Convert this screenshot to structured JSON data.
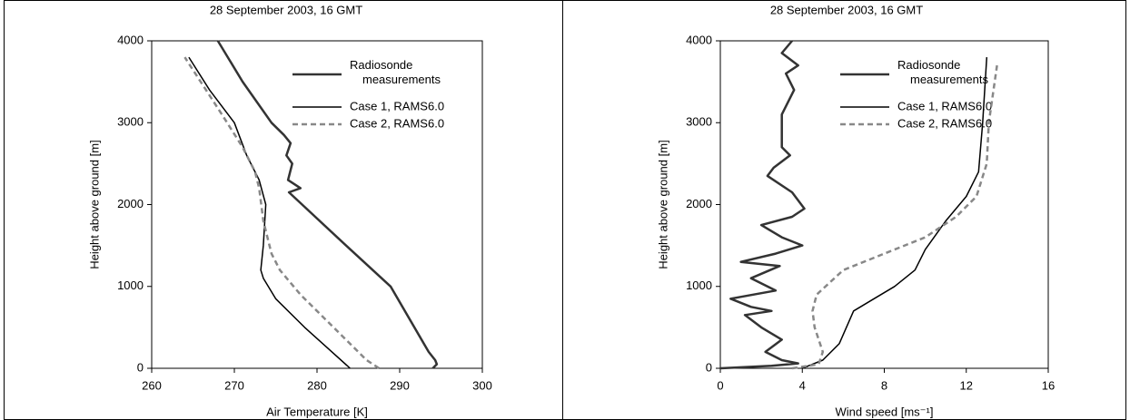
{
  "chart_data": [
    {
      "type": "line",
      "title": "28 September 2003, 16 GMT",
      "x_label": "Air Temperature [K]",
      "y_label": "Height above ground [m]",
      "xlim": [
        260,
        300
      ],
      "ylim": [
        0,
        4000
      ],
      "xticks": [
        260,
        270,
        280,
        290,
        300
      ],
      "yticks": [
        0,
        1000,
        2000,
        3000,
        4000
      ],
      "legend": "upper right",
      "series": [
        {
          "name": "Radiosonde measurements",
          "color": "#333333",
          "width": 2.5,
          "style": "solid",
          "x": [
            294.0,
            294.5,
            294.3,
            293.5,
            288.9,
            283.5,
            278.2,
            276.6,
            278.0,
            276.5,
            277.0,
            276.3,
            276.8,
            276.0,
            274.5,
            271.0,
            268.0
          ],
          "values": [
            0,
            50,
            100,
            200,
            1000,
            1500,
            2000,
            2150,
            2200,
            2300,
            2500,
            2600,
            2750,
            2850,
            3000,
            3500,
            4000
          ]
        },
        {
          "name": "Case 1, RAMS6.0",
          "color": "#000000",
          "width": 1.5,
          "style": "solid",
          "x": [
            284.0,
            278.5,
            275.0,
            273.5,
            273.2,
            273.5,
            273.8,
            273.0,
            271.5,
            270.0,
            267.0,
            264.5
          ],
          "values": [
            0,
            500,
            850,
            1100,
            1200,
            1500,
            2000,
            2300,
            2600,
            3000,
            3400,
            3800
          ]
        },
        {
          "name": "Case 2, RAMS6.0",
          "color": "#888888",
          "width": 2.5,
          "style": "dashed",
          "x": [
            287.5,
            286.0,
            282.0,
            278.0,
            275.5,
            274.5,
            273.5,
            273.0,
            272.5,
            271.0,
            268.5,
            264.0
          ],
          "values": [
            0,
            100,
            500,
            900,
            1200,
            1400,
            1800,
            2200,
            2400,
            2700,
            3100,
            3800
          ]
        }
      ]
    },
    {
      "type": "line",
      "title": "28 September 2003, 16 GMT",
      "x_label": "Wind speed [ms⁻¹]",
      "y_label": "Height above ground [m]",
      "xlim": [
        0,
        16
      ],
      "ylim": [
        0,
        4000
      ],
      "xticks": [
        0,
        4,
        8,
        12,
        16
      ],
      "yticks": [
        0,
        1000,
        2000,
        3000,
        4000
      ],
      "legend": "upper right",
      "series": [
        {
          "name": "Radiosonde measurements",
          "color": "#333333",
          "width": 2.5,
          "style": "solid",
          "x": [
            0,
            2.5,
            3.8,
            3.0,
            2.2,
            3.0,
            2.0,
            1.2,
            2.5,
            1.5,
            0.5,
            2.7,
            1.5,
            2.9,
            1.0,
            2.7,
            4.0,
            3.0,
            2.0,
            3.5,
            4.1,
            3.5,
            2.3,
            2.6,
            3.4,
            3.0,
            3.0,
            3.6,
            3.2,
            3.8,
            3.0,
            3.5
          ],
          "values": [
            0,
            30,
            60,
            100,
            200,
            350,
            500,
            650,
            700,
            750,
            850,
            950,
            1100,
            1250,
            1300,
            1400,
            1500,
            1600,
            1750,
            1850,
            1950,
            2150,
            2350,
            2450,
            2600,
            2700,
            3100,
            3400,
            3600,
            3700,
            3850,
            4000
          ]
        },
        {
          "name": "Case 1, RAMS6.0",
          "color": "#000000",
          "width": 1.5,
          "style": "solid",
          "x": [
            4.0,
            5.0,
            5.8,
            6.5,
            7.5,
            8.5,
            9.5,
            10.0,
            11.0,
            12.0,
            12.6,
            12.8,
            13.0
          ],
          "values": [
            0,
            100,
            300,
            700,
            850,
            1000,
            1200,
            1450,
            1800,
            2100,
            2400,
            3000,
            3800
          ]
        },
        {
          "name": "Case 2, RAMS6.0",
          "color": "#888888",
          "width": 2.5,
          "style": "dashed",
          "x": [
            3.5,
            4.8,
            5.0,
            4.6,
            4.5,
            4.7,
            6.0,
            8.0,
            10.0,
            11.5,
            12.5,
            13.0,
            13.1,
            13.5
          ],
          "values": [
            0,
            50,
            200,
            500,
            700,
            900,
            1200,
            1400,
            1600,
            1850,
            2100,
            2500,
            3000,
            3700
          ]
        }
      ]
    }
  ]
}
